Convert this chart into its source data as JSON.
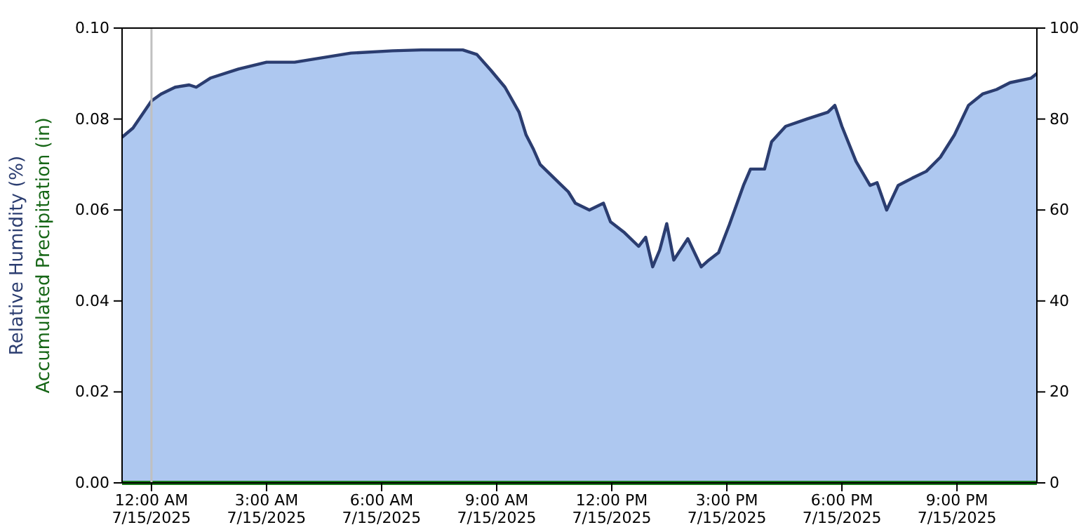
{
  "chart_data": {
    "type": "area",
    "ylabel": "Accumulated Precipitation (in)",
    "annotations": [
      "Relative Humidity (%)"
    ],
    "xlim": [
      "2025-07-14T23:14",
      "2025-07-15T23:05"
    ],
    "xticks": [
      {
        "value": "2025-07-15T00:00",
        "label": "12:00 AM\n7/15/2025"
      },
      {
        "value": "2025-07-15T03:00",
        "label": "3:00 AM\n7/15/2025"
      },
      {
        "value": "2025-07-15T06:00",
        "label": "6:00 AM\n7/15/2025"
      },
      {
        "value": "2025-07-15T09:00",
        "label": "9:00 AM\n7/15/2025"
      },
      {
        "value": "2025-07-15T12:00",
        "label": "12:00 PM\n7/15/2025"
      },
      {
        "value": "2025-07-15T15:00",
        "label": "3:00 PM\n7/15/2025"
      },
      {
        "value": "2025-07-15T18:00",
        "label": "6:00 PM\n7/15/2025"
      },
      {
        "value": "2025-07-15T21:00",
        "label": "9:00 PM\n7/15/2025"
      }
    ],
    "ylim": [
      0,
      0.1
    ],
    "yticks": [
      {
        "value": 0,
        "label": "0.00"
      },
      {
        "value": 0.02,
        "label": "0.02"
      },
      {
        "value": 0.04,
        "label": "0.04"
      },
      {
        "value": 0.06,
        "label": "0.06"
      },
      {
        "value": 0.08,
        "label": "0.08"
      },
      {
        "value": 0.1,
        "label": "0.10"
      }
    ],
    "y2lim": [
      0,
      100
    ],
    "y2ticks": [
      0,
      20,
      40,
      60,
      80,
      100
    ],
    "grid": false,
    "ref_lines": [
      {
        "axis": "x",
        "value": "2025-07-15T00:00",
        "label": null,
        "color": "#c0c0c0"
      }
    ],
    "series": [
      {
        "axis": "y2",
        "color": "#aec8f0",
        "x": [
          "2025-07-14T23:14",
          "2025-07-14T23:31",
          "2025-07-15T00:00",
          "2025-07-15T00:15",
          "2025-07-15T00:37",
          "2025-07-15T00:59",
          "2025-07-15T01:10",
          "2025-07-15T01:32",
          "2025-07-15T02:16",
          "2025-07-15T03:00",
          "2025-07-15T03:44",
          "2025-07-15T04:28",
          "2025-07-15T05:12",
          "2025-07-15T06:17",
          "2025-07-15T07:02",
          "2025-07-15T08:07",
          "2025-07-15T08:29",
          "2025-07-15T08:51",
          "2025-07-15T09:13",
          "2025-07-15T09:35",
          "2025-07-15T09:46",
          "2025-07-15T09:57",
          "2025-07-15T10:08",
          "2025-07-15T10:30",
          "2025-07-15T10:41",
          "2025-07-15T10:52",
          "2025-07-15T11:03",
          "2025-07-15T11:25",
          "2025-07-15T11:47",
          "2025-07-15T11:58",
          "2025-07-15T12:20",
          "2025-07-15T12:42",
          "2025-07-15T12:53",
          "2025-07-15T13:04",
          "2025-07-15T13:15",
          "2025-07-15T13:26",
          "2025-07-15T13:37",
          "2025-07-15T13:59",
          "2025-07-15T14:20",
          "2025-07-15T14:32",
          "2025-07-15T14:47",
          "2025-07-15T15:04",
          "2025-07-15T15:26",
          "2025-07-15T15:37",
          "2025-07-15T15:59",
          "2025-07-15T16:10",
          "2025-07-15T16:32",
          "2025-07-15T17:05",
          "2025-07-15T17:38",
          "2025-07-15T17:49",
          "2025-07-15T18:00",
          "2025-07-15T18:22",
          "2025-07-15T18:44",
          "2025-07-15T18:55",
          "2025-07-15T19:10",
          "2025-07-15T19:28",
          "2025-07-15T19:50",
          "2025-07-15T20:12",
          "2025-07-15T20:34",
          "2025-07-15T20:56",
          "2025-07-15T21:18",
          "2025-07-15T21:40",
          "2025-07-15T22:02",
          "2025-07-15T22:23",
          "2025-07-15T22:56",
          "2025-07-15T23:05"
        ],
        "values": [
          76,
          78,
          84,
          85.5,
          87,
          87.5,
          87,
          89,
          91,
          92.5,
          92.5,
          93.5,
          94.5,
          95,
          95.2,
          95.2,
          94.2,
          90.7,
          87,
          81.5,
          76.5,
          73.5,
          70,
          67,
          65.5,
          64,
          61.5,
          60,
          61.5,
          57.4,
          55,
          52,
          54,
          47.5,
          51.2,
          57,
          49,
          53.7,
          47.5,
          49,
          50.6,
          56.8,
          65.4,
          69,
          69,
          75,
          78.4,
          80,
          81.5,
          83,
          78.4,
          70.7,
          65.4,
          66,
          60,
          65.4,
          67,
          68.5,
          71.6,
          76.5,
          83,
          85.5,
          86.5,
          88,
          89,
          90
        ]
      },
      {
        "type": "line",
        "axis": "y",
        "color": "#1a7a1a",
        "x": [
          "2025-07-14T23:14",
          "2025-07-15T23:05"
        ],
        "values": [
          0,
          0
        ]
      }
    ]
  }
}
